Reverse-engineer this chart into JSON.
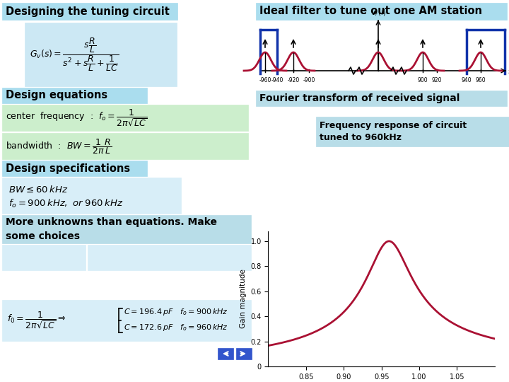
{
  "bg_color": "#ffffff",
  "title_left": "Designing the tuning circuit",
  "title_right": "Ideal filter to tune out one AM station",
  "title_bg": "#aaddee",
  "section_design_eq": "Design equations",
  "section_design_spec": "Design specifications",
  "section_more": "More unknowns than equations. Make\nsome choices",
  "section_fourier": "Fourier transform of received signal",
  "section_freq_resp": "Frequency response of circuit\ntuned to 960kHz",
  "green_bg": "#cceecc",
  "light_blue_bg": "#b8dde8",
  "lighter_blue_bg": "#d8eef8",
  "tf_box_bg": "#cce8f4",
  "crimson": "#aa1133",
  "dark_blue": "#1133aa",
  "nav_blue": "#3355cc"
}
